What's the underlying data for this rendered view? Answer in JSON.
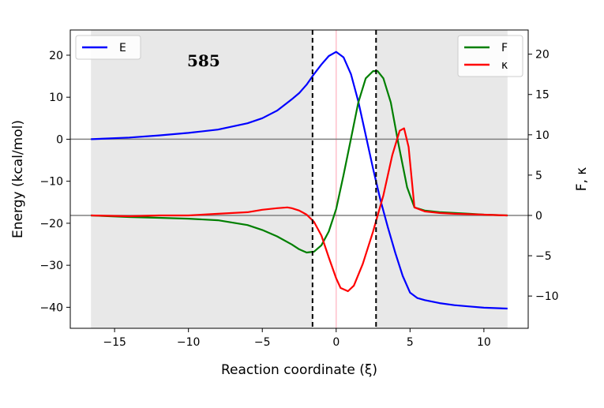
{
  "chart_data": {
    "type": "line",
    "annotation": "585",
    "xlabel": "Reaction coordinate (ξ)",
    "ylabel": "Energy (kcal/mol)",
    "y2label": "F, κ",
    "xlim": [
      -18,
      13
    ],
    "ylim": [
      -45,
      26
    ],
    "y2lim": [
      -14,
      23
    ],
    "xticks": [
      -15,
      -10,
      -5,
      0,
      5,
      10
    ],
    "yticks": [
      20,
      10,
      0,
      -10,
      -20,
      -30,
      -40
    ],
    "y2ticks": [
      20,
      15,
      10,
      5,
      0,
      -5,
      -10
    ],
    "shaded_regions": [
      [
        -16.6,
        -1.6
      ],
      [
        2.7,
        11.6
      ]
    ],
    "vlines_dashed": [
      -1.6,
      2.7
    ],
    "vline_center": 0,
    "hlines": [
      {
        "axis": "left",
        "y": 0
      },
      {
        "axis": "right",
        "y": 0
      }
    ],
    "grid": false,
    "series": [
      {
        "name": "E",
        "axis": "left",
        "color": "#0000ff",
        "x": [
          -16.6,
          -14,
          -12,
          -10,
          -8,
          -6,
          -5,
          -4,
          -3,
          -2.5,
          -2,
          -1.5,
          -1,
          -0.5,
          0,
          0.5,
          1,
          1.5,
          2,
          2.5,
          3,
          3.5,
          4,
          4.5,
          5,
          5.5,
          6,
          7,
          8,
          9,
          10,
          11.6
        ],
        "y": [
          0,
          0.4,
          0.9,
          1.5,
          2.3,
          3.8,
          5.0,
          6.8,
          9.5,
          11.0,
          13.0,
          15.5,
          17.8,
          19.8,
          20.8,
          19.5,
          15.5,
          9.0,
          1.0,
          -7.0,
          -14.5,
          -21.0,
          -27.0,
          -32.5,
          -36.5,
          -37.8,
          -38.3,
          -39.0,
          -39.5,
          -39.8,
          -40.1,
          -40.3
        ]
      },
      {
        "name": "F",
        "axis": "right",
        "color": "#007f00",
        "x": [
          -16.6,
          -14,
          -12,
          -10,
          -8,
          -6,
          -5,
          -4,
          -3,
          -2.5,
          -2,
          -1.5,
          -1,
          -0.5,
          0,
          0.5,
          1,
          1.5,
          2,
          2.5,
          2.8,
          3.2,
          3.7,
          4.2,
          4.8,
          5.3,
          6,
          7,
          8,
          9,
          10,
          11.6
        ],
        "y": [
          0,
          -0.2,
          -0.3,
          -0.4,
          -0.6,
          -1.2,
          -1.8,
          -2.6,
          -3.6,
          -4.2,
          -4.6,
          -4.5,
          -3.7,
          -2.0,
          0.8,
          5.0,
          9.5,
          14.0,
          17.0,
          17.9,
          17.9,
          17.0,
          14.0,
          9.0,
          3.5,
          1.0,
          0.6,
          0.4,
          0.3,
          0.2,
          0.1,
          0.0
        ]
      },
      {
        "name": "κ",
        "axis": "right",
        "color": "#ff0000",
        "x": [
          -16.6,
          -14,
          -12,
          -10,
          -8,
          -6,
          -5,
          -4,
          -3.3,
          -3,
          -2.5,
          -2,
          -1.5,
          -1,
          -0.5,
          0,
          0.3,
          0.8,
          1.2,
          1.8,
          2.5,
          3.2,
          3.8,
          4.3,
          4.6,
          4.9,
          5.3,
          6,
          7,
          8,
          10,
          11.6
        ],
        "y": [
          0,
          -0.1,
          0,
          0,
          0.2,
          0.4,
          0.7,
          0.9,
          1.0,
          0.9,
          0.6,
          0.1,
          -0.8,
          -2.5,
          -5.2,
          -7.8,
          -9.0,
          -9.4,
          -8.7,
          -6.0,
          -2.0,
          2.5,
          7.5,
          10.5,
          10.8,
          8.5,
          1.0,
          0.5,
          0.3,
          0.2,
          0.1,
          0.0
        ]
      }
    ],
    "legends": [
      {
        "position": "upper-left",
        "entries": [
          "E"
        ]
      },
      {
        "position": "upper-right",
        "entries": [
          "F",
          "κ"
        ]
      }
    ]
  }
}
